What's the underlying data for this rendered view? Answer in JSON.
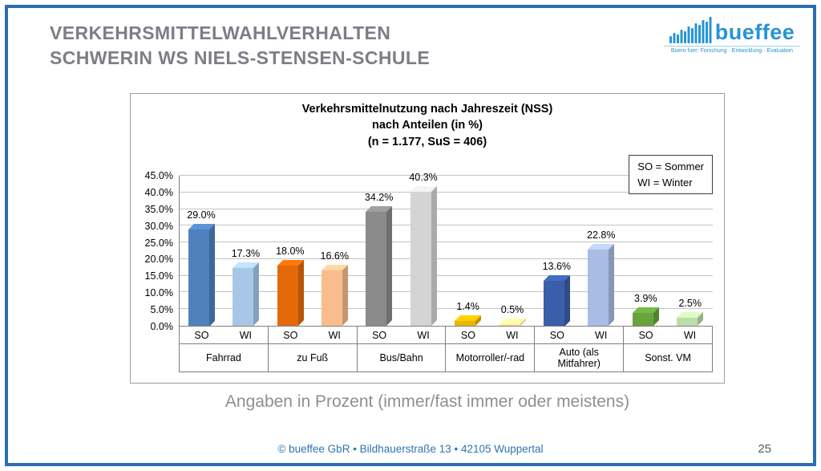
{
  "slide": {
    "title_lines": [
      "VERKEHRSMITTELWAHLVERHALTEN",
      "SCHWERIN WS NIELS-STENSEN-SCHULE"
    ],
    "caption": "Angaben in Prozent (immer/fast immer oder meistens)",
    "footer": "© bueffee GbR • Bildhauerstraße 13 • 42105 Wuppertal",
    "page_number": "25",
    "border_color": "#2b6cb5"
  },
  "logo": {
    "name": "bueffee",
    "tagline": "Buero fuer: Forschung · Entwicklung · Evaluation",
    "icon": "equalizer-bars-icon",
    "color": "#2694d3"
  },
  "chart_data": {
    "type": "bar",
    "title_lines": [
      "Verkehrsmittelnutzung nach Jahreszeit (NSS)",
      "nach Anteilen (in %)",
      "(n = 1.177, SuS = 406)"
    ],
    "legend_lines": [
      "SO = Sommer",
      "WI = Winter"
    ],
    "legend_position": "top-right",
    "grid": true,
    "categories": [
      "Fahrrad",
      "zu Fuß",
      "Bus/Bahn",
      "Motorroller/-rad",
      "Auto (als Mitfahrer)",
      "Sonst. VM"
    ],
    "series": [
      {
        "name": "SO",
        "values": [
          29.0,
          18.0,
          34.2,
          1.4,
          13.6,
          3.9
        ]
      },
      {
        "name": "WI",
        "values": [
          17.3,
          16.6,
          40.3,
          0.5,
          22.8,
          2.5
        ]
      }
    ],
    "ylim": [
      0,
      45
    ],
    "ytick_step": 5,
    "ytick_labels": [
      "0.0%",
      "5.0%",
      "10.0%",
      "15.0%",
      "20.0%",
      "25.0%",
      "30.0%",
      "35.0%",
      "40.0%",
      "45.0%"
    ],
    "bar_colors": [
      {
        "SO": "#4f81bd",
        "WI": "#a8c7e7"
      },
      {
        "SO": "#e3690b",
        "WI": "#f8bd8e"
      },
      {
        "SO": "#8b8b8b",
        "WI": "#d4d4d4"
      },
      {
        "SO": "#eab600",
        "WI": "#ffe598"
      },
      {
        "SO": "#3a5fa8",
        "WI": "#a9bce2"
      },
      {
        "SO": "#69a33e",
        "WI": "#c0dbaa"
      }
    ]
  }
}
